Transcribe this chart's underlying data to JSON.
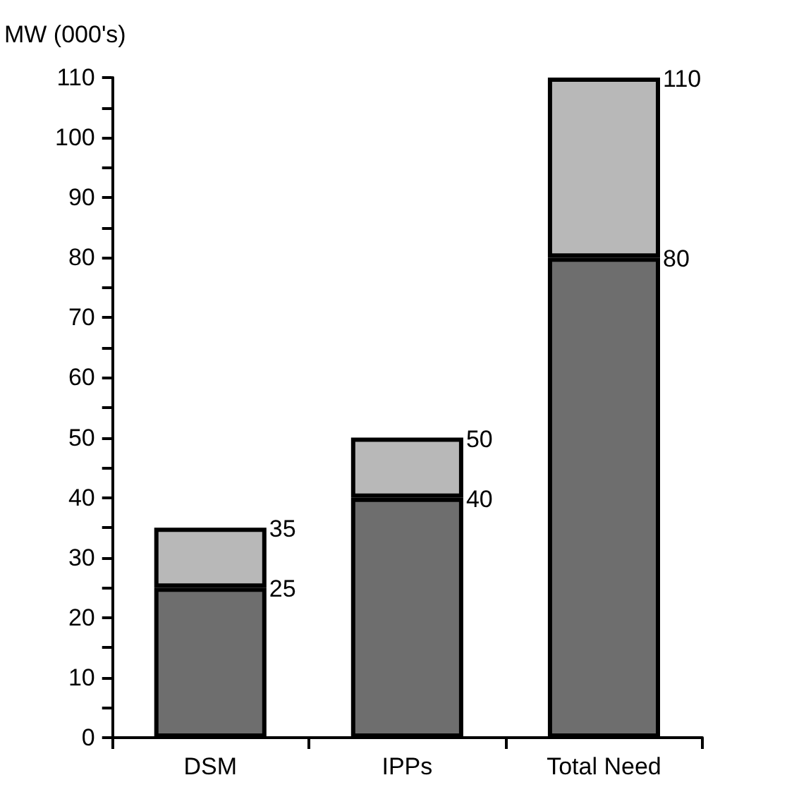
{
  "chart_data": {
    "type": "bar",
    "ylabel": "MW (000's)",
    "categories": [
      "DSM",
      "IPPs",
      "Total Need"
    ],
    "stacked": true,
    "series": [
      {
        "color": "#6e6e6e",
        "values": [
          25,
          40,
          80
        ],
        "value_labels": [
          "25",
          "40",
          "80"
        ]
      },
      {
        "color": "#b8b8b8",
        "values": [
          10,
          10,
          30
        ]
      }
    ],
    "totals": [
      "35",
      "50",
      "110"
    ],
    "ylim": [
      0,
      110
    ],
    "yticks": [
      0,
      {
        "value": 5,
        "label": null
      },
      10,
      {
        "value": 15,
        "label": null
      },
      20,
      {
        "value": 25,
        "label": null
      },
      30,
      {
        "value": 35,
        "label": null
      },
      40,
      {
        "value": 45,
        "label": null
      },
      50,
      {
        "value": 55,
        "label": null
      },
      60,
      {
        "value": 65,
        "label": null
      },
      70,
      {
        "value": 75,
        "label": null
      },
      80,
      {
        "value": 85,
        "label": null
      },
      90,
      {
        "value": 95,
        "label": null
      },
      100,
      {
        "value": 105,
        "label": null
      },
      110
    ],
    "grid": false
  }
}
